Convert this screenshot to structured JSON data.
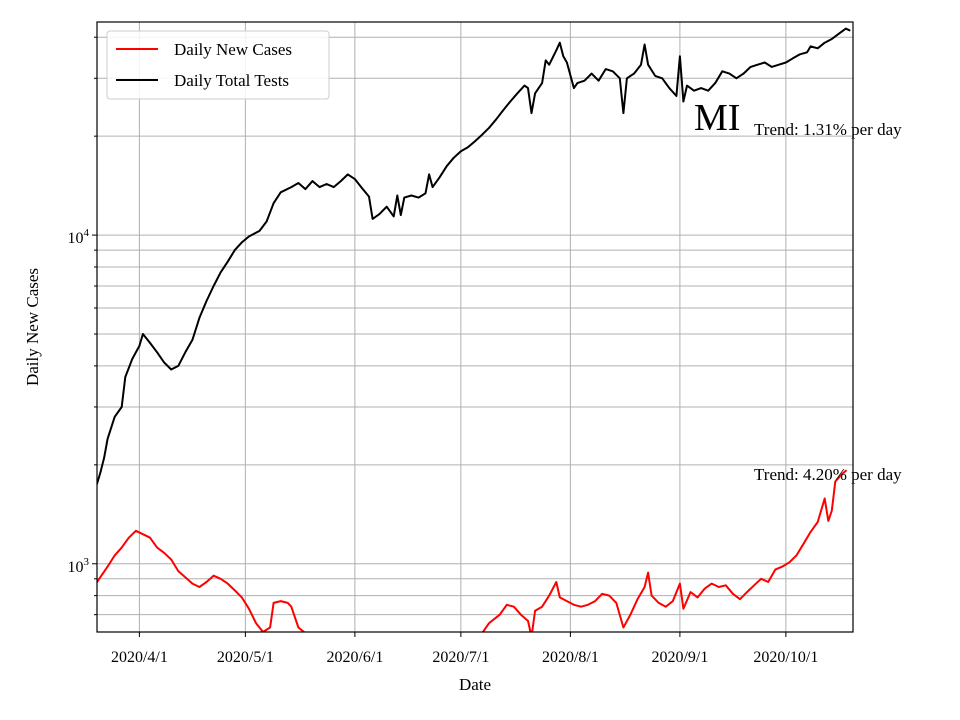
{
  "chart_data": {
    "type": "line",
    "xlabel": "Date",
    "ylabel": "Daily New Cases",
    "y_scale": "log",
    "ylim": [
      620,
      44500
    ],
    "xlim": [
      "2020-03-20",
      "2020-10-20"
    ],
    "x_ticks": [
      {
        "date": "2020-04-01",
        "label": "2020/4/1"
      },
      {
        "date": "2020-05-01",
        "label": "2020/5/1"
      },
      {
        "date": "2020-06-01",
        "label": "2020/6/1"
      },
      {
        "date": "2020-07-01",
        "label": "2020/7/1"
      },
      {
        "date": "2020-08-01",
        "label": "2020/8/1"
      },
      {
        "date": "2020-09-01",
        "label": "2020/9/1"
      },
      {
        "date": "2020-10-01",
        "label": "2020/10/1"
      }
    ],
    "y_ticks": [
      {
        "value": 1000,
        "base": "10",
        "exp": "3"
      },
      {
        "value": 10000,
        "base": "10",
        "exp": "4"
      }
    ],
    "grid": true,
    "legend_position": "top-left",
    "state_label": "MI",
    "annotations": {
      "tests_trend": "Trend: 1.31% per day",
      "cases_trend": "Trend: 4.20% per day"
    },
    "series": [
      {
        "name": "Daily New Cases",
        "color": "#ff0000",
        "points": [
          [
            "2020-03-20",
            880
          ],
          [
            "2020-03-23",
            980
          ],
          [
            "2020-03-25",
            1060
          ],
          [
            "2020-03-27",
            1120
          ],
          [
            "2020-03-29",
            1200
          ],
          [
            "2020-03-31",
            1260
          ],
          [
            "2020-04-02",
            1230
          ],
          [
            "2020-04-04",
            1200
          ],
          [
            "2020-04-06",
            1120
          ],
          [
            "2020-04-08",
            1080
          ],
          [
            "2020-04-10",
            1030
          ],
          [
            "2020-04-12",
            950
          ],
          [
            "2020-04-14",
            910
          ],
          [
            "2020-04-16",
            870
          ],
          [
            "2020-04-18",
            850
          ],
          [
            "2020-04-20",
            880
          ],
          [
            "2020-04-22",
            920
          ],
          [
            "2020-04-24",
            900
          ],
          [
            "2020-04-26",
            870
          ],
          [
            "2020-04-28",
            830
          ],
          [
            "2020-04-30",
            790
          ],
          [
            "2020-05-02",
            730
          ],
          [
            "2020-05-04",
            660
          ],
          [
            "2020-05-06",
            620
          ],
          [
            "2020-05-08",
            640
          ],
          [
            "2020-05-09",
            760
          ],
          [
            "2020-05-11",
            770
          ],
          [
            "2020-05-13",
            760
          ],
          [
            "2020-05-14",
            740
          ],
          [
            "2020-05-16",
            640
          ],
          [
            "2020-05-18",
            615
          ],
          [
            "2020-07-07",
            615
          ],
          [
            "2020-07-09",
            660
          ],
          [
            "2020-07-12",
            700
          ],
          [
            "2020-07-14",
            750
          ],
          [
            "2020-07-16",
            740
          ],
          [
            "2020-07-18",
            700
          ],
          [
            "2020-07-20",
            670
          ],
          [
            "2020-07-21",
            600
          ],
          [
            "2020-07-22",
            720
          ],
          [
            "2020-07-24",
            740
          ],
          [
            "2020-07-26",
            800
          ],
          [
            "2020-07-28",
            880
          ],
          [
            "2020-07-29",
            790
          ],
          [
            "2020-07-31",
            770
          ],
          [
            "2020-08-02",
            750
          ],
          [
            "2020-08-04",
            740
          ],
          [
            "2020-08-06",
            750
          ],
          [
            "2020-08-08",
            770
          ],
          [
            "2020-08-10",
            810
          ],
          [
            "2020-08-12",
            800
          ],
          [
            "2020-08-14",
            760
          ],
          [
            "2020-08-16",
            640
          ],
          [
            "2020-08-18",
            700
          ],
          [
            "2020-08-20",
            780
          ],
          [
            "2020-08-22",
            850
          ],
          [
            "2020-08-23",
            940
          ],
          [
            "2020-08-24",
            800
          ],
          [
            "2020-08-26",
            760
          ],
          [
            "2020-08-28",
            740
          ],
          [
            "2020-08-30",
            770
          ],
          [
            "2020-09-01",
            870
          ],
          [
            "2020-09-02",
            730
          ],
          [
            "2020-09-04",
            820
          ],
          [
            "2020-09-06",
            790
          ],
          [
            "2020-09-08",
            840
          ],
          [
            "2020-09-10",
            870
          ],
          [
            "2020-09-12",
            850
          ],
          [
            "2020-09-14",
            860
          ],
          [
            "2020-09-16",
            810
          ],
          [
            "2020-09-18",
            780
          ],
          [
            "2020-09-20",
            820
          ],
          [
            "2020-09-22",
            860
          ],
          [
            "2020-09-24",
            900
          ],
          [
            "2020-09-26",
            880
          ],
          [
            "2020-09-28",
            960
          ],
          [
            "2020-09-30",
            980
          ],
          [
            "2020-10-02",
            1010
          ],
          [
            "2020-10-04",
            1060
          ],
          [
            "2020-10-06",
            1150
          ],
          [
            "2020-10-08",
            1250
          ],
          [
            "2020-10-10",
            1340
          ],
          [
            "2020-10-12",
            1580
          ],
          [
            "2020-10-13",
            1350
          ],
          [
            "2020-10-14",
            1450
          ],
          [
            "2020-10-15",
            1780
          ],
          [
            "2020-10-17",
            1880
          ],
          [
            "2020-10-18",
            1920
          ]
        ]
      },
      {
        "name": "Daily Total Tests",
        "color": "#000000",
        "points": [
          [
            "2020-03-20",
            1750
          ],
          [
            "2020-03-21",
            1900
          ],
          [
            "2020-03-22",
            2100
          ],
          [
            "2020-03-23",
            2400
          ],
          [
            "2020-03-25",
            2800
          ],
          [
            "2020-03-27",
            3000
          ],
          [
            "2020-03-28",
            3700
          ],
          [
            "2020-03-30",
            4200
          ],
          [
            "2020-04-01",
            4600
          ],
          [
            "2020-04-02",
            5000
          ],
          [
            "2020-04-04",
            4700
          ],
          [
            "2020-04-06",
            4400
          ],
          [
            "2020-04-08",
            4100
          ],
          [
            "2020-04-10",
            3900
          ],
          [
            "2020-04-12",
            4000
          ],
          [
            "2020-04-14",
            4400
          ],
          [
            "2020-04-16",
            4800
          ],
          [
            "2020-04-18",
            5600
          ],
          [
            "2020-04-20",
            6300
          ],
          [
            "2020-04-22",
            7000
          ],
          [
            "2020-04-24",
            7700
          ],
          [
            "2020-04-26",
            8300
          ],
          [
            "2020-04-28",
            9000
          ],
          [
            "2020-04-30",
            9500
          ],
          [
            "2020-05-02",
            9900
          ],
          [
            "2020-05-05",
            10300
          ],
          [
            "2020-05-07",
            11000
          ],
          [
            "2020-05-09",
            12500
          ],
          [
            "2020-05-11",
            13500
          ],
          [
            "2020-05-14",
            14000
          ],
          [
            "2020-05-16",
            14400
          ],
          [
            "2020-05-18",
            13800
          ],
          [
            "2020-05-20",
            14600
          ],
          [
            "2020-05-22",
            14000
          ],
          [
            "2020-05-24",
            14300
          ],
          [
            "2020-05-26",
            14000
          ],
          [
            "2020-05-28",
            14600
          ],
          [
            "2020-05-30",
            15300
          ],
          [
            "2020-06-01",
            14800
          ],
          [
            "2020-06-03",
            13900
          ],
          [
            "2020-06-05",
            13100
          ],
          [
            "2020-06-06",
            11200
          ],
          [
            "2020-06-08",
            11600
          ],
          [
            "2020-06-10",
            12200
          ],
          [
            "2020-06-12",
            11400
          ],
          [
            "2020-06-13",
            13200
          ],
          [
            "2020-06-14",
            11500
          ],
          [
            "2020-06-15",
            13000
          ],
          [
            "2020-06-17",
            13200
          ],
          [
            "2020-06-19",
            13000
          ],
          [
            "2020-06-21",
            13400
          ],
          [
            "2020-06-22",
            15300
          ],
          [
            "2020-06-23",
            14000
          ],
          [
            "2020-06-25",
            15000
          ],
          [
            "2020-06-27",
            16200
          ],
          [
            "2020-06-29",
            17200
          ],
          [
            "2020-07-01",
            18000
          ],
          [
            "2020-07-03",
            18500
          ],
          [
            "2020-07-05",
            19300
          ],
          [
            "2020-07-07",
            20200
          ],
          [
            "2020-07-09",
            21200
          ],
          [
            "2020-07-11",
            22500
          ],
          [
            "2020-07-13",
            24000
          ],
          [
            "2020-07-15",
            25500
          ],
          [
            "2020-07-17",
            27000
          ],
          [
            "2020-07-19",
            28500
          ],
          [
            "2020-07-20",
            28000
          ],
          [
            "2020-07-21",
            23500
          ],
          [
            "2020-07-22",
            27000
          ],
          [
            "2020-07-24",
            29000
          ],
          [
            "2020-07-25",
            34000
          ],
          [
            "2020-07-26",
            33000
          ],
          [
            "2020-07-28",
            36500
          ],
          [
            "2020-07-29",
            38500
          ],
          [
            "2020-07-30",
            35000
          ],
          [
            "2020-07-31",
            33500
          ],
          [
            "2020-08-02",
            28000
          ],
          [
            "2020-08-03",
            29000
          ],
          [
            "2020-08-05",
            29500
          ],
          [
            "2020-08-07",
            31000
          ],
          [
            "2020-08-09",
            29500
          ],
          [
            "2020-08-11",
            32000
          ],
          [
            "2020-08-13",
            31500
          ],
          [
            "2020-08-15",
            30000
          ],
          [
            "2020-08-16",
            23500
          ],
          [
            "2020-08-17",
            30000
          ],
          [
            "2020-08-19",
            31000
          ],
          [
            "2020-08-21",
            33000
          ],
          [
            "2020-08-22",
            38000
          ],
          [
            "2020-08-23",
            33000
          ],
          [
            "2020-08-25",
            30500
          ],
          [
            "2020-08-27",
            30000
          ],
          [
            "2020-08-29",
            28000
          ],
          [
            "2020-08-31",
            26500
          ],
          [
            "2020-09-01",
            35000
          ],
          [
            "2020-09-02",
            25500
          ],
          [
            "2020-09-03",
            28500
          ],
          [
            "2020-09-05",
            27500
          ],
          [
            "2020-09-07",
            28000
          ],
          [
            "2020-09-09",
            27500
          ],
          [
            "2020-09-11",
            29000
          ],
          [
            "2020-09-13",
            31500
          ],
          [
            "2020-09-15",
            31000
          ],
          [
            "2020-09-17",
            30000
          ],
          [
            "2020-09-19",
            31000
          ],
          [
            "2020-09-21",
            32500
          ],
          [
            "2020-09-23",
            33000
          ],
          [
            "2020-09-25",
            33500
          ],
          [
            "2020-09-27",
            32500
          ],
          [
            "2020-09-29",
            33000
          ],
          [
            "2020-10-01",
            33500
          ],
          [
            "2020-10-03",
            34500
          ],
          [
            "2020-10-05",
            35500
          ],
          [
            "2020-10-07",
            36000
          ],
          [
            "2020-10-08",
            37500
          ],
          [
            "2020-10-10",
            37000
          ],
          [
            "2020-10-12",
            38500
          ],
          [
            "2020-10-14",
            39500
          ],
          [
            "2020-10-16",
            41000
          ],
          [
            "2020-10-18",
            42500
          ],
          [
            "2020-10-19",
            42000
          ]
        ]
      }
    ]
  }
}
